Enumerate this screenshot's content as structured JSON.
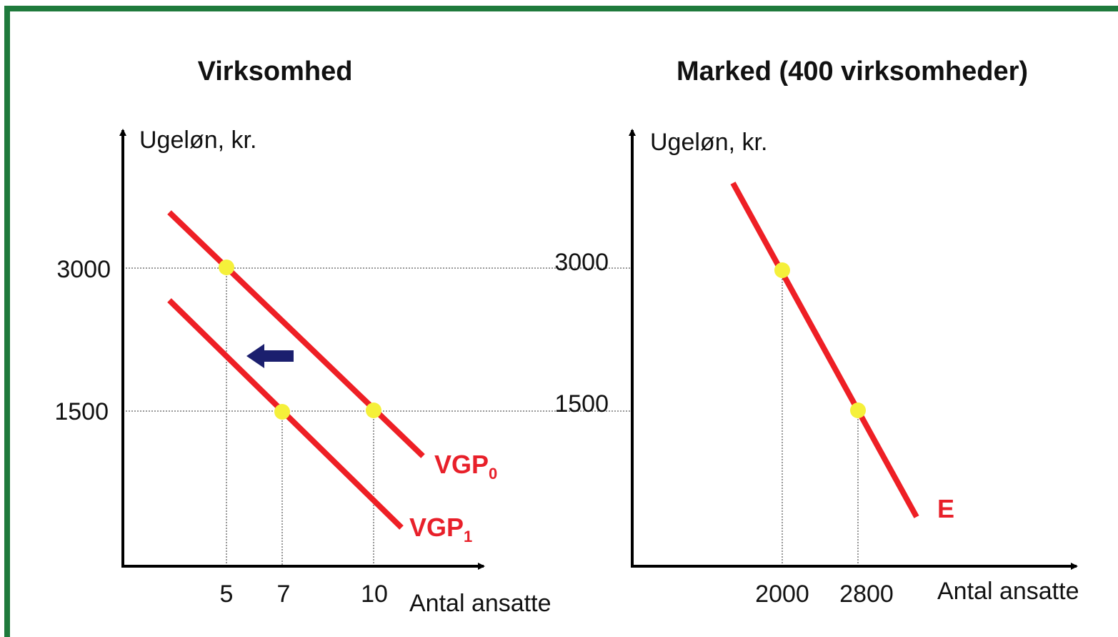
{
  "left": {
    "title": "Virksomhed",
    "y_axis_label": "Ugeløn, kr.",
    "x_axis_label": "Antal ansatte",
    "y_ticks": [
      "3000",
      "1500"
    ],
    "x_ticks": [
      "5",
      "7",
      "10"
    ],
    "curves": [
      {
        "label": "VGP",
        "subscript": "0"
      },
      {
        "label": "VGP",
        "subscript": "1"
      }
    ]
  },
  "right": {
    "title": "Marked (400 virksomheder)",
    "y_axis_label": "Ugeløn, kr.",
    "x_axis_label": "Antal ansatte",
    "y_ticks": [
      "3000",
      "1500"
    ],
    "x_ticks": [
      "2000",
      "2800"
    ],
    "curves": [
      {
        "label": "E"
      }
    ]
  }
}
